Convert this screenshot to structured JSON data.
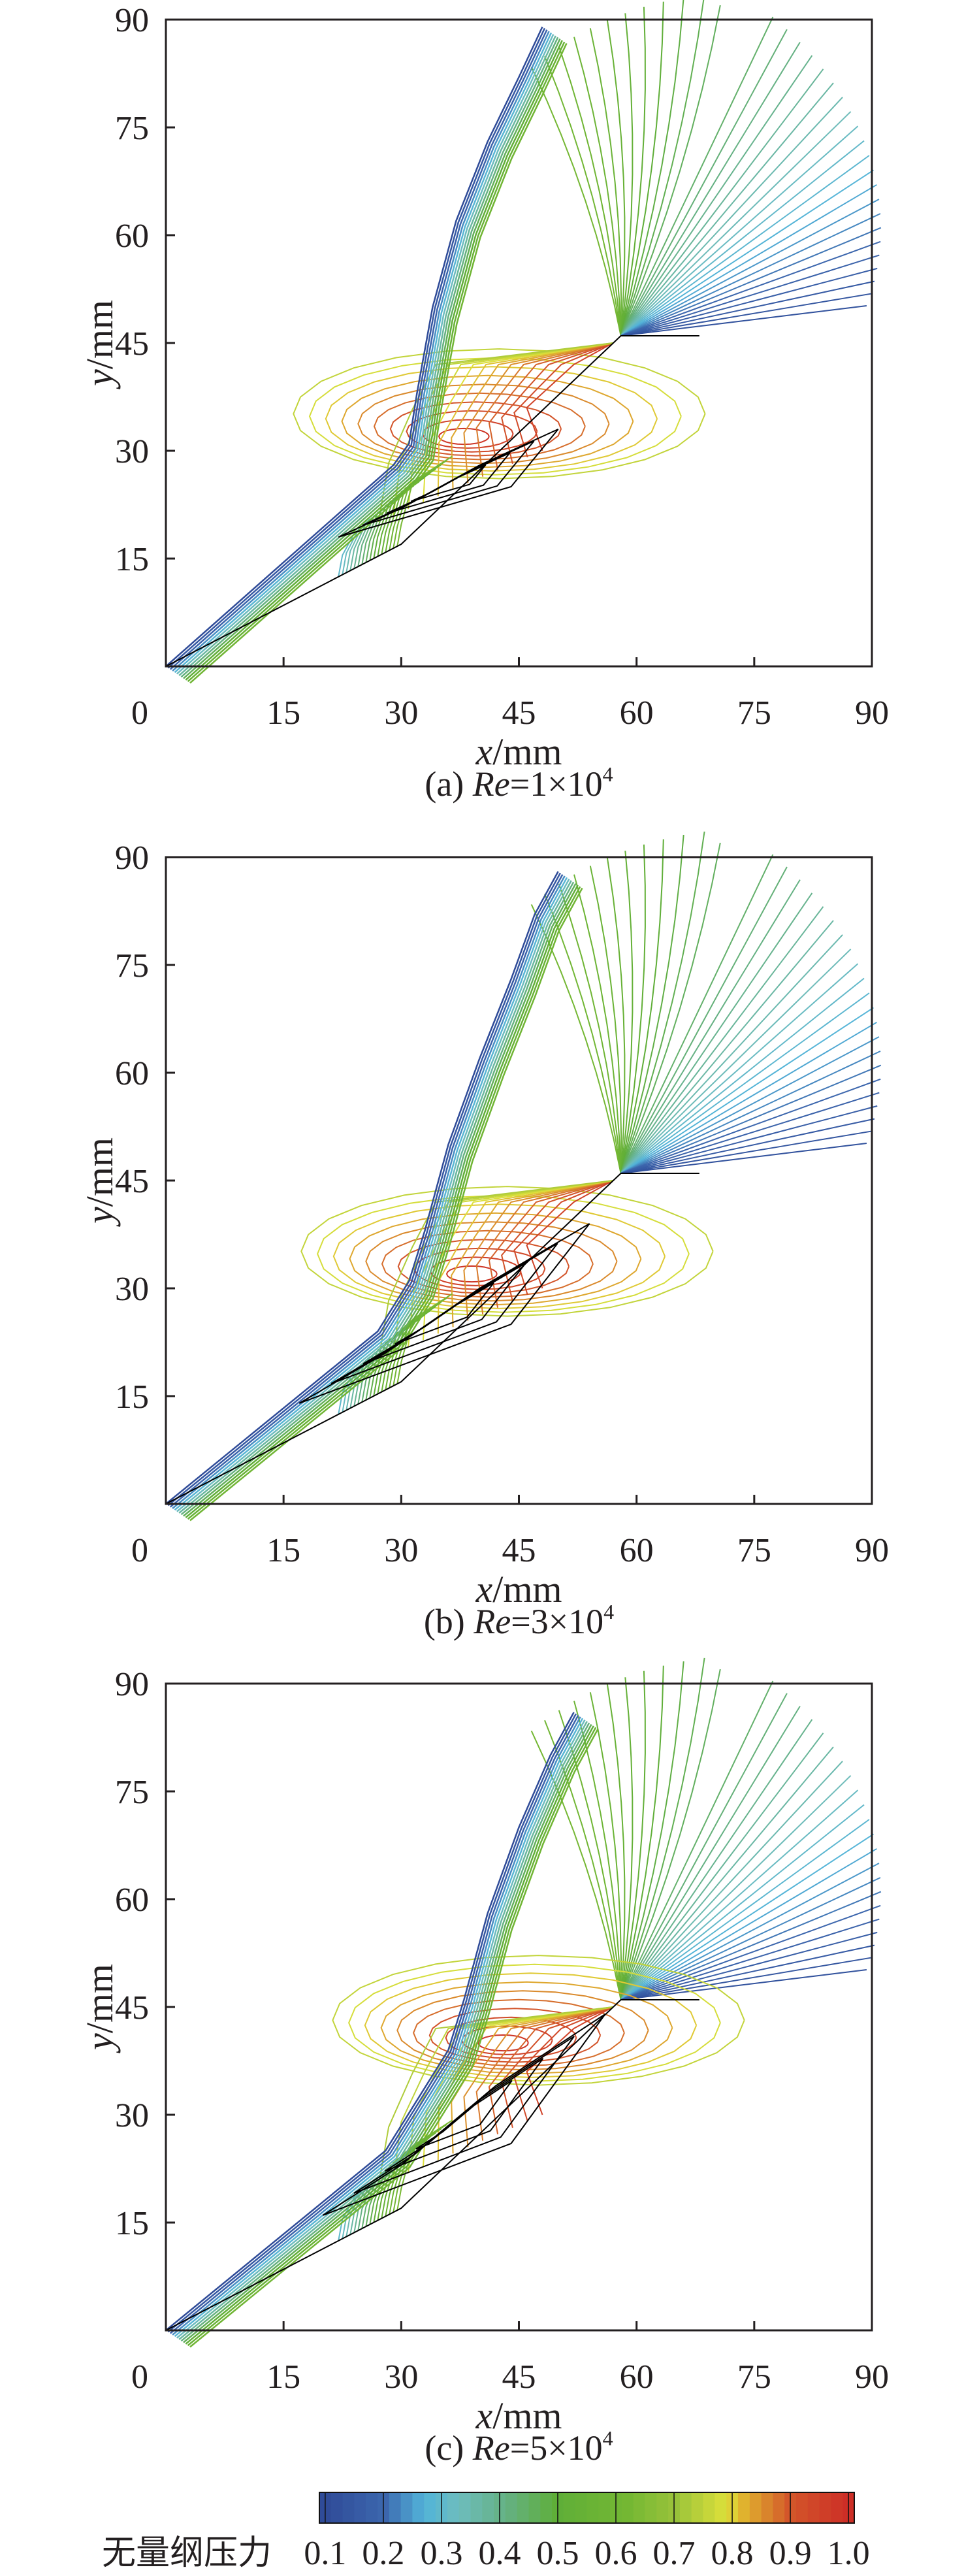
{
  "chart_data": {
    "type": "contour",
    "title": "",
    "xlabel": {
      "var": "x",
      "unit": "/mm"
    },
    "ylabel": {
      "var": "y",
      "unit": "/mm"
    },
    "xlim": [
      0,
      90
    ],
    "ylim": [
      0,
      90
    ],
    "xticks": [
      "0",
      "15",
      "30",
      "45",
      "60",
      "75",
      "90"
    ],
    "yticks": [
      "15",
      "30",
      "45",
      "60",
      "75",
      "90"
    ],
    "grid": false,
    "geometry": {
      "cone": [
        [
          0,
          0
        ],
        [
          30,
          17
        ],
        [
          58,
          46
        ],
        [
          68,
          46
        ]
      ]
    },
    "panels": [
      {
        "caption": {
          "prefix": "(a) ",
          "var": "Re",
          "eq": "=1×10",
          "exp": "4"
        },
        "shock": [
          [
            0,
            0
          ],
          [
            29,
            28
          ],
          [
            31,
            31
          ],
          [
            32,
            38
          ],
          [
            34,
            50
          ],
          [
            37,
            62
          ],
          [
            41,
            73
          ],
          [
            45,
            82
          ],
          [
            48,
            89
          ]
        ],
        "bubble": [
          [
            22,
            18
          ],
          [
            44,
            25
          ],
          [
            50,
            33
          ],
          [
            40,
            28
          ],
          [
            30,
            22
          ]
        ],
        "separation_blob": [
          35,
          32
        ]
      },
      {
        "caption": {
          "prefix": "(b) ",
          "var": "Re",
          "eq": "=3×10",
          "exp": "4"
        },
        "shock": [
          [
            0,
            0
          ],
          [
            27,
            24
          ],
          [
            31,
            31
          ],
          [
            33,
            38
          ],
          [
            36,
            50
          ],
          [
            40,
            62
          ],
          [
            44,
            73
          ],
          [
            47,
            82
          ],
          [
            50,
            88
          ]
        ],
        "bubble": [
          [
            17,
            14
          ],
          [
            44,
            25
          ],
          [
            54,
            39
          ],
          [
            40,
            30
          ],
          [
            28,
            21
          ]
        ],
        "separation_blob": [
          36,
          32
        ]
      },
      {
        "caption": {
          "prefix": "(c) ",
          "var": "Re",
          "eq": "=5×10",
          "exp": "4"
        },
        "shock": [
          [
            0,
            0
          ],
          [
            28,
            25
          ],
          [
            36,
            39
          ],
          [
            38,
            46
          ],
          [
            41,
            58
          ],
          [
            45,
            70
          ],
          [
            49,
            80
          ],
          [
            52,
            86
          ]
        ],
        "bubble": [
          [
            20,
            16
          ],
          [
            44,
            26
          ],
          [
            56,
            44
          ],
          [
            42,
            34
          ],
          [
            30,
            23
          ]
        ],
        "separation_blob": [
          40,
          40
        ]
      }
    ],
    "colorbar": {
      "label": "无量纲压力",
      "ticks": [
        "0.1",
        "0.2",
        "0.3",
        "0.4",
        "0.5",
        "0.6",
        "0.7",
        "0.8",
        "0.9",
        "1.0"
      ],
      "range": [
        0.09,
        1.01
      ],
      "colors": [
        [
          0.09,
          "#2e4896"
        ],
        [
          0.2,
          "#3c66ad"
        ],
        [
          0.27,
          "#52b3d9"
        ],
        [
          0.33,
          "#6dbcbd"
        ],
        [
          0.42,
          "#64b07c"
        ],
        [
          0.5,
          "#5fae38"
        ],
        [
          0.62,
          "#74b733"
        ],
        [
          0.7,
          "#98c23a"
        ],
        [
          0.79,
          "#dde03a"
        ],
        [
          0.82,
          "#e0b22e"
        ],
        [
          0.9,
          "#d3562a"
        ],
        [
          1.01,
          "#cc2a26"
        ]
      ]
    }
  }
}
